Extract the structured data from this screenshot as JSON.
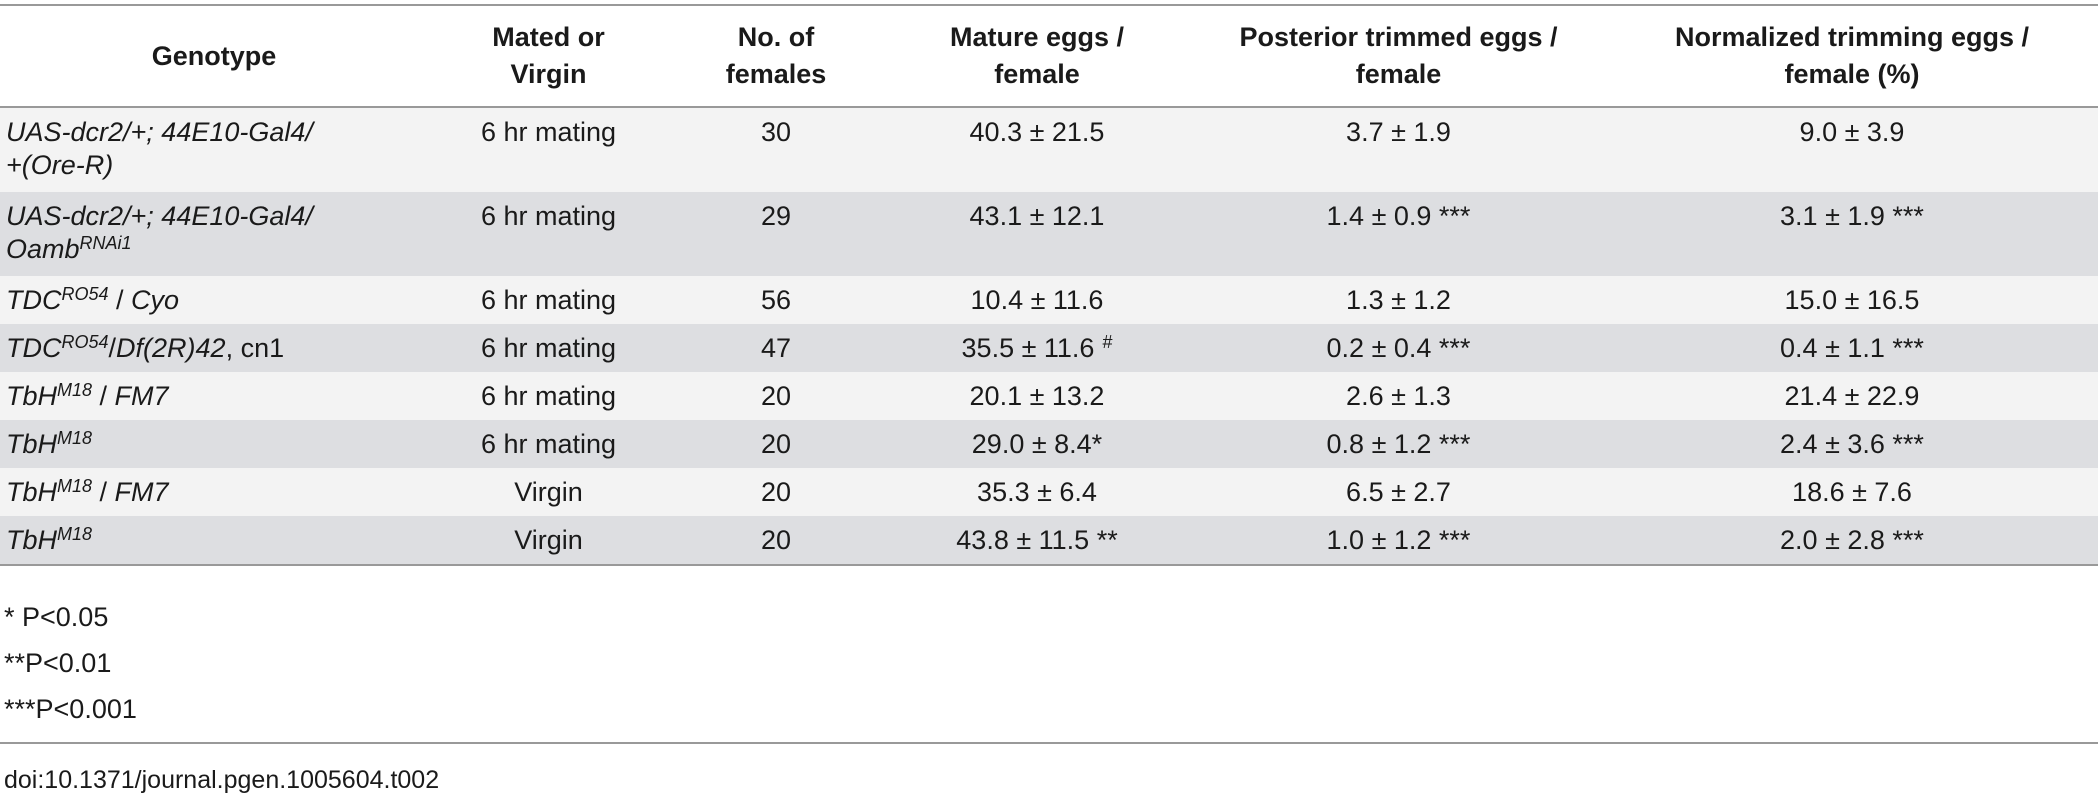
{
  "table": {
    "headers": [
      [
        "Genotype"
      ],
      [
        "Mated or",
        "Virgin"
      ],
      [
        "No. of",
        "females"
      ],
      [
        "Mature eggs /",
        "female"
      ],
      [
        "Posterior trimmed eggs /",
        "female"
      ],
      [
        "Normalized trimming eggs /",
        "female (%)"
      ]
    ],
    "rows": [
      {
        "genotype": [
          [
            {
              "text": "UAS-dcr2/+; 44E10-Gal4/",
              "italic": true
            }
          ],
          [
            {
              "text": "+(Ore-R)",
              "italic": true
            }
          ]
        ],
        "status": "6 hr mating",
        "females": 30,
        "mature": "40.3 ± 21.5",
        "posterior": "3.7 ± 1.9",
        "normalized": "9.0 ± 3.9"
      },
      {
        "genotype": [
          [
            {
              "text": "UAS-dcr2/+; 44E10-Gal4/",
              "italic": true
            }
          ],
          [
            {
              "text": "Oamb",
              "italic": true
            },
            {
              "text": "RNAi1",
              "italic": true,
              "sup": true
            }
          ]
        ],
        "status": "6 hr mating",
        "females": 29,
        "mature": "43.1 ± 12.1",
        "posterior": "1.4 ± 0.9 ***",
        "normalized": "3.1 ± 1.9 ***"
      },
      {
        "genotype": [
          [
            {
              "text": "TDC",
              "italic": true
            },
            {
              "text": "RO54",
              "italic": true,
              "sup": true
            },
            {
              "text": " / "
            },
            {
              "text": "Cyo",
              "italic": true
            }
          ]
        ],
        "status": "6 hr mating",
        "females": 56,
        "mature": "10.4 ± 11.6",
        "posterior": "1.3 ± 1.2",
        "normalized": "15.0 ± 16.5"
      },
      {
        "genotype": [
          [
            {
              "text": "TDC",
              "italic": true
            },
            {
              "text": "RO54",
              "italic": true,
              "sup": true
            },
            {
              "text": "/"
            },
            {
              "text": "Df(2R)42",
              "italic": true
            },
            {
              "text": ", cn1"
            }
          ]
        ],
        "status": "6 hr mating",
        "females": 47,
        "mature": "35.5 ± 11.6",
        "mature_sup": "#",
        "posterior": "0.2 ± 0.4 ***",
        "normalized": "0.4 ± 1.1 ***"
      },
      {
        "genotype": [
          [
            {
              "text": "TbH",
              "italic": true
            },
            {
              "text": "M18",
              "italic": true,
              "sup": true
            },
            {
              "text": " / "
            },
            {
              "text": "FM7",
              "italic": true
            }
          ]
        ],
        "status": "6 hr mating",
        "females": 20,
        "mature": "20.1 ± 13.2",
        "posterior": "2.6 ± 1.3",
        "normalized": "21.4 ± 22.9"
      },
      {
        "genotype": [
          [
            {
              "text": "TbH",
              "italic": true
            },
            {
              "text": "M18",
              "italic": true,
              "sup": true
            }
          ]
        ],
        "status": "6 hr mating",
        "females": 20,
        "mature": "29.0 ± 8.4*",
        "posterior": "0.8 ± 1.2 ***",
        "normalized": "2.4 ± 3.6 ***"
      },
      {
        "genotype": [
          [
            {
              "text": "TbH",
              "italic": true
            },
            {
              "text": "M18",
              "italic": true,
              "sup": true
            },
            {
              "text": " / "
            },
            {
              "text": "FM7",
              "italic": true
            }
          ]
        ],
        "status": "Virgin",
        "females": 20,
        "mature": "35.3 ± 6.4",
        "posterior": "6.5 ± 2.7",
        "normalized": "18.6 ± 7.6"
      },
      {
        "genotype": [
          [
            {
              "text": "TbH",
              "italic": true
            },
            {
              "text": "M18",
              "italic": true,
              "sup": true
            }
          ]
        ],
        "status": "Virgin",
        "females": 20,
        "mature": "43.8 ± 11.5 **",
        "posterior": "1.0 ± 1.2 ***",
        "normalized": "2.0 ± 2.8 ***"
      }
    ]
  },
  "footnotes": [
    "* P<0.05",
    "**P<0.01",
    "***P<0.001"
  ],
  "doi": "doi:10.1371/journal.pgen.1005604.t002"
}
